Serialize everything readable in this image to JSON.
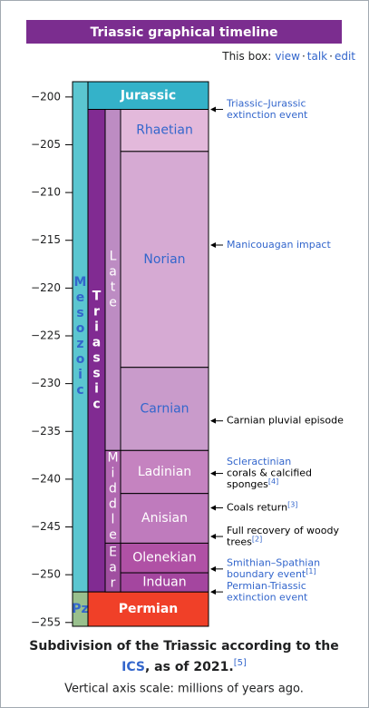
{
  "chart_data": {
    "type": "timeline",
    "title": "Triassic graphical timeline",
    "box_text": "This box:",
    "box_links": [
      "view",
      "talk",
      "edit"
    ],
    "separator": "·",
    "ylim": [
      -198.4,
      -255.4
    ],
    "yticks": [
      {
        "value": -200,
        "label": "−200"
      },
      {
        "value": -205,
        "label": "−205"
      },
      {
        "value": -210,
        "label": "−210"
      },
      {
        "value": -215,
        "label": "−215"
      },
      {
        "value": -220,
        "label": "−220"
      },
      {
        "value": -225,
        "label": "−225"
      },
      {
        "value": -230,
        "label": "−230"
      },
      {
        "value": -235,
        "label": "−235"
      },
      {
        "value": -240,
        "label": "−240"
      },
      {
        "value": -245,
        "label": "−245"
      },
      {
        "value": -250,
        "label": "−250"
      },
      {
        "value": -255,
        "label": "−255"
      }
    ],
    "ranks": [
      "era",
      "period",
      "epoch",
      "stage"
    ],
    "intervals": [
      {
        "name": "Mesozoic",
        "rank": "era",
        "start": -198.4,
        "end": -251.8,
        "color": "#5bc6d0",
        "text_color": "#3366cc",
        "bold": true
      },
      {
        "name": "Pz",
        "rank": "era",
        "start": -251.8,
        "end": -255.4,
        "color": "#99c08d",
        "text_color": "#3366cc",
        "bold": true
      },
      {
        "name": "Jurassic",
        "rank": "period",
        "start": -198.4,
        "end": -201.3,
        "color": "#34b2c9",
        "text_color": "#ffffff",
        "bold": true
      },
      {
        "name": "Triassic",
        "rank": "period",
        "start": -201.3,
        "end": -251.8,
        "color": "#812b92",
        "text_color": "#ffffff",
        "bold": true
      },
      {
        "name": "Permian",
        "rank": "period",
        "start": -251.8,
        "end": -255.4,
        "color": "#f04028",
        "text_color": "#ffffff",
        "bold": true
      },
      {
        "name": "Late",
        "rank": "epoch",
        "start": -201.3,
        "end": -237,
        "color": "#bd8cc3",
        "text_color": "#ffffff",
        "bold": false
      },
      {
        "name": "Middle",
        "rank": "epoch",
        "start": -237,
        "end": -246.7,
        "color": "#b168b1",
        "text_color": "#ffffff",
        "bold": false
      },
      {
        "name": "Early",
        "rank": "epoch",
        "start": -246.7,
        "end": -251.8,
        "color": "#a04fa0",
        "text_color": "#ffffff",
        "bold": false
      },
      {
        "name": "Rhaetian",
        "rank": "stage",
        "start": -201.3,
        "end": -205.7,
        "color": "#e3b9db",
        "text_color": "#3366cc",
        "bold": false
      },
      {
        "name": "Norian",
        "rank": "stage",
        "start": -205.7,
        "end": -228.3,
        "color": "#d6aad3",
        "text_color": "#3366cc",
        "bold": false
      },
      {
        "name": "Carnian",
        "rank": "stage",
        "start": -228.3,
        "end": -237,
        "color": "#c99bcb",
        "text_color": "#3366cc",
        "bold": false
      },
      {
        "name": "Ladinian",
        "rank": "stage",
        "start": -237,
        "end": -241.5,
        "color": "#c583c0",
        "text_color": "#ffffff",
        "bold": false
      },
      {
        "name": "Anisian",
        "rank": "stage",
        "start": -241.5,
        "end": -246.7,
        "color": "#bf7bbd",
        "text_color": "#ffffff",
        "bold": false
      },
      {
        "name": "Olenekian",
        "rank": "stage",
        "start": -246.7,
        "end": -249.8,
        "color": "#b051a5",
        "text_color": "#ffffff",
        "bold": false
      },
      {
        "name": "Induan",
        "rank": "stage",
        "start": -249.8,
        "end": -251.8,
        "color": "#a4469f",
        "text_color": "#ffffff",
        "bold": false
      }
    ],
    "events": [
      {
        "value": -201.3,
        "lines": [
          {
            "text": "Triassic–Jurassic",
            "link": true
          },
          {
            "text": "extinction event",
            "link": true
          }
        ]
      },
      {
        "value": -215.5,
        "lines": [
          {
            "text": "Manicouagan impact",
            "link": true
          }
        ]
      },
      {
        "value": -233.9,
        "lines": [
          {
            "text": "Carnian pluvial episode",
            "link": false
          }
        ]
      },
      {
        "value": -239.4,
        "lines": [
          {
            "text": "Scleractinian",
            "link": true
          },
          {
            "text": "corals & calcified",
            "link": false
          },
          {
            "text": "sponges",
            "link": false,
            "ref": "[4]"
          }
        ]
      },
      {
        "value": -243,
        "lines": [
          {
            "text": "Coals return",
            "link": false,
            "ref": "[3]"
          }
        ]
      },
      {
        "value": -246,
        "lines": [
          {
            "text": "Full recovery of woody",
            "link": false
          },
          {
            "text": "trees",
            "link": false,
            "ref": "[2]"
          }
        ]
      },
      {
        "value": -249.4,
        "lines": [
          {
            "text": "Smithian–Spathian",
            "link": true
          },
          {
            "text": "boundary event",
            "link": true,
            "ref": "[1]"
          }
        ]
      },
      {
        "value": -251.8,
        "lines": [
          {
            "text": "Permian-Triassic",
            "link": true
          },
          {
            "text": "extinction event",
            "link": true
          }
        ]
      }
    ],
    "caption": [
      [
        {
          "text": "Subdivision of the Triassic according to the",
          "link": false
        }
      ],
      [
        {
          "text": "ICS",
          "link": true
        },
        {
          "text": ", as of 2021.",
          "link": false
        },
        {
          "text": "[5]",
          "link": true,
          "sup": true
        }
      ]
    ],
    "note": "Vertical axis scale: millions of years ago."
  }
}
